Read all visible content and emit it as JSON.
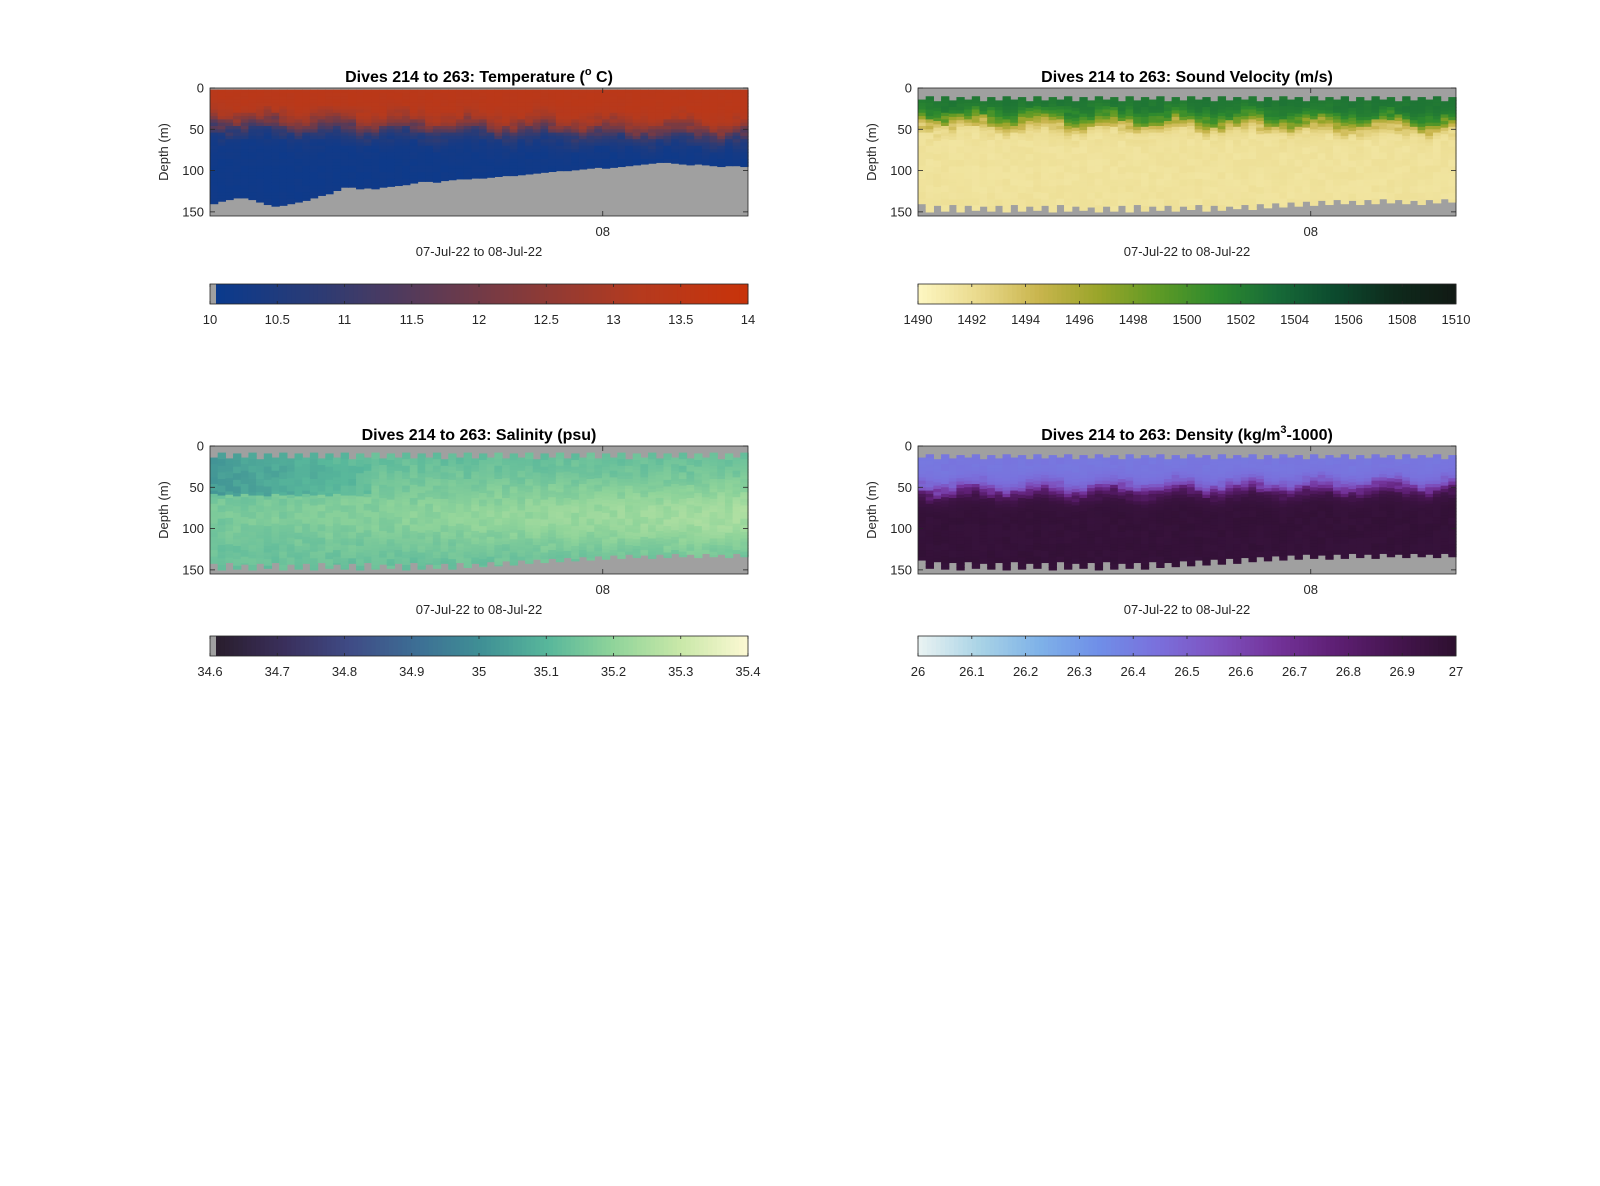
{
  "colors": {
    "missing": "#a0a0a0",
    "axis": "#262626"
  },
  "chart_data": [
    {
      "type": "heatmap",
      "title_pre": "Dives 214 to 263: Temperature (",
      "title_sup": "o",
      "title_post": " C)",
      "xlabel": "07-Jul-22 to 08-Jul-22",
      "ylabel": "Depth (m)",
      "x_tick_labels": [
        "08"
      ],
      "x_tick_positions": [
        0.73
      ],
      "y_ticks": [
        0,
        50,
        100,
        150
      ],
      "ylim": [
        0,
        155
      ],
      "clim": [
        10,
        14
      ],
      "colorbar_ticks": [
        "10",
        "10.5",
        "11",
        "11.5",
        "12",
        "12.5",
        "13",
        "13.5",
        "14"
      ],
      "colormap": [
        "#0b3a8c",
        "#2e3b73",
        "#5c3a55",
        "#8a3a38",
        "#b53a1e",
        "#c8330a"
      ],
      "colorbar_gap_left": true,
      "max_depth": [
        140,
        137,
        135,
        133,
        133,
        135,
        138,
        141,
        143,
        142,
        140,
        138,
        136,
        133,
        130,
        128,
        124,
        120,
        120,
        122,
        121,
        122,
        120,
        119,
        118,
        117,
        115,
        113,
        113,
        114,
        112,
        111,
        110,
        110,
        109,
        109,
        108,
        107,
        106,
        106,
        105,
        104,
        103,
        102,
        101,
        100,
        100,
        99,
        98,
        97,
        96,
        97,
        96,
        95,
        94,
        93,
        92,
        91,
        90,
        90,
        91,
        92,
        93,
        92,
        93,
        94,
        95,
        94,
        94,
        95
      ],
      "min_depth": [
        2,
        2,
        2,
        2,
        2,
        2,
        2,
        2,
        2,
        2,
        2,
        2,
        2,
        2,
        2,
        2,
        2,
        2,
        2,
        2,
        2,
        2,
        2,
        2,
        2,
        2,
        2,
        2,
        2,
        2,
        2,
        2,
        2,
        2,
        2,
        2,
        2,
        2,
        2,
        2,
        2,
        2,
        2,
        2,
        2,
        2,
        2,
        2,
        2,
        2,
        2,
        2,
        2,
        2,
        2,
        2,
        2,
        2,
        2,
        2,
        2,
        2,
        2,
        2,
        2,
        2,
        2,
        2,
        2,
        2
      ],
      "profile": {
        "kind": "tanh",
        "d0_start": 42,
        "d0_end": 55,
        "width": 14,
        "top": 13.4,
        "bottom": 10.1
      }
    },
    {
      "type": "heatmap",
      "title_pre": "Dives 214 to 263: Sound Velocity (m/s)",
      "title_sup": "",
      "title_post": "",
      "xlabel": "07-Jul-22 to 08-Jul-22",
      "ylabel": "Depth (m)",
      "x_tick_labels": [
        "08"
      ],
      "x_tick_positions": [
        0.73
      ],
      "y_ticks": [
        0,
        50,
        100,
        150
      ],
      "ylim": [
        0,
        155
      ],
      "clim": [
        1490,
        1510
      ],
      "colorbar_ticks": [
        "1490",
        "1492",
        "1494",
        "1496",
        "1498",
        "1500",
        "1502",
        "1504",
        "1506",
        "1508",
        "1510"
      ],
      "colormap": [
        "#fdf6c0",
        "#e9d98b",
        "#c9b54d",
        "#9aa52a",
        "#5f9a25",
        "#2e8a2e",
        "#176b38",
        "#0c4a2e",
        "#0e2a1c",
        "#111a14"
      ],
      "colorbar_gap_left": false,
      "max_depth": [
        140,
        150,
        142,
        149,
        141,
        150,
        142,
        148,
        143,
        149,
        142,
        150,
        141,
        149,
        143,
        148,
        142,
        150,
        141,
        149,
        143,
        148,
        144,
        150,
        143,
        149,
        142,
        150,
        141,
        149,
        143,
        148,
        142,
        149,
        143,
        147,
        141,
        149,
        142,
        148,
        143,
        146,
        141,
        147,
        140,
        145,
        139,
        144,
        138,
        143,
        137,
        142,
        136,
        141,
        135,
        140,
        136,
        141,
        135,
        140,
        134,
        139,
        135,
        140,
        136,
        141,
        135,
        139,
        134,
        138
      ],
      "min_depth": [
        14,
        10,
        16,
        10,
        15,
        11,
        14,
        10,
        16,
        11,
        15,
        10,
        14,
        11,
        16,
        10,
        15,
        11,
        14,
        10,
        16,
        11,
        15,
        10,
        14,
        11,
        16,
        10,
        15,
        11,
        14,
        10,
        16,
        11,
        15,
        10,
        14,
        11,
        16,
        10,
        15,
        11,
        14,
        10,
        16,
        11,
        15,
        10,
        14,
        11,
        16,
        10,
        15,
        11,
        14,
        10,
        16,
        11,
        15,
        10,
        14,
        11,
        16,
        10,
        15,
        11,
        14,
        10,
        16,
        11
      ],
      "profile": {
        "kind": "tanh",
        "d0_start": 38,
        "d0_end": 44,
        "width": 10,
        "top": 1502.5,
        "bottom": 1491.5
      }
    },
    {
      "type": "heatmap",
      "title_pre": "Dives 214 to 263: Salinity (psu)",
      "title_sup": "",
      "title_post": "",
      "xlabel": "07-Jul-22 to 08-Jul-22",
      "ylabel": "Depth (m)",
      "x_tick_labels": [
        "08"
      ],
      "x_tick_positions": [
        0.73
      ],
      "y_ticks": [
        0,
        50,
        100,
        150
      ],
      "ylim": [
        0,
        155
      ],
      "clim": [
        34.6,
        35.4
      ],
      "colorbar_ticks": [
        "34.6",
        "34.7",
        "34.8",
        "34.9",
        "35",
        "35.1",
        "35.2",
        "35.3",
        "35.4"
      ],
      "colormap": [
        "#2a1e2e",
        "#3a2f5c",
        "#3f4b86",
        "#3d6e95",
        "#3f9095",
        "#58b79b",
        "#90d49a",
        "#c8e8a8",
        "#fbf8d2"
      ],
      "colorbar_gap_left": true,
      "max_depth": [
        142,
        150,
        141,
        149,
        143,
        150,
        142,
        148,
        141,
        150,
        143,
        149,
        142,
        150,
        141,
        148,
        143,
        149,
        142,
        150,
        141,
        149,
        143,
        148,
        142,
        150,
        141,
        149,
        143,
        148,
        142,
        149,
        141,
        147,
        142,
        146,
        140,
        145,
        139,
        144,
        138,
        142,
        137,
        141,
        136,
        140,
        135,
        139,
        134,
        138,
        133,
        137,
        132,
        136,
        131,
        135,
        132,
        136,
        131,
        135,
        130,
        134,
        131,
        135,
        130,
        134,
        131,
        135,
        130,
        134
      ],
      "min_depth": [
        14,
        8,
        15,
        9,
        14,
        8,
        16,
        9,
        14,
        8,
        15,
        9,
        14,
        8,
        15,
        9,
        14,
        8,
        16,
        9,
        14,
        8,
        15,
        9,
        14,
        8,
        15,
        9,
        14,
        8,
        16,
        9,
        14,
        8,
        15,
        9,
        14,
        8,
        15,
        9,
        14,
        8,
        16,
        9,
        14,
        8,
        15,
        9,
        14,
        8,
        15,
        9,
        14,
        8,
        16,
        9,
        14,
        8,
        15,
        9,
        14,
        8,
        15,
        9,
        14,
        8,
        16,
        9,
        14,
        8
      ],
      "profile": {
        "kind": "bump",
        "center": 85,
        "width": 45,
        "top": 35.12,
        "peak": 35.24,
        "early_low": 35.03
      }
    },
    {
      "type": "heatmap",
      "title_pre": "Dives 214 to 263: Density (kg/m",
      "title_sup": "3",
      "title_post": "-1000)",
      "xlabel": "07-Jul-22 to 08-Jul-22",
      "ylabel": "Depth (m)",
      "x_tick_labels": [
        "08"
      ],
      "x_tick_positions": [
        0.73
      ],
      "y_ticks": [
        0,
        50,
        100,
        150
      ],
      "ylim": [
        0,
        155
      ],
      "clim": [
        26,
        27
      ],
      "colorbar_ticks": [
        "26",
        "26.1",
        "26.2",
        "26.3",
        "26.4",
        "26.5",
        "26.6",
        "26.7",
        "26.8",
        "26.9",
        "27"
      ],
      "colormap": [
        "#e8f2f2",
        "#a9d3e6",
        "#7fb2e8",
        "#6f8fe8",
        "#7a70dc",
        "#7e52c0",
        "#73339a",
        "#5e1f74",
        "#461550",
        "#2e1030"
      ],
      "colorbar_gap_left": false,
      "max_depth": [
        138,
        148,
        140,
        149,
        141,
        150,
        140,
        148,
        142,
        149,
        141,
        150,
        140,
        149,
        142,
        148,
        141,
        150,
        140,
        149,
        142,
        148,
        141,
        150,
        140,
        149,
        142,
        148,
        141,
        149,
        140,
        147,
        141,
        146,
        139,
        145,
        138,
        144,
        137,
        143,
        136,
        142,
        135,
        140,
        134,
        139,
        133,
        138,
        132,
        137,
        131,
        136,
        132,
        137,
        131,
        136,
        130,
        135,
        131,
        136,
        130,
        134,
        131,
        135,
        130,
        134,
        131,
        135,
        130,
        134
      ],
      "min_depth": [
        14,
        10,
        16,
        10,
        15,
        11,
        14,
        10,
        16,
        11,
        15,
        10,
        14,
        11,
        16,
        10,
        15,
        11,
        14,
        10,
        16,
        11,
        15,
        10,
        14,
        11,
        16,
        10,
        15,
        11,
        14,
        10,
        16,
        11,
        15,
        10,
        14,
        11,
        16,
        10,
        15,
        11,
        14,
        10,
        16,
        11,
        15,
        10,
        14,
        11,
        16,
        10,
        15,
        11,
        14,
        10,
        16,
        11,
        15,
        10,
        14,
        11,
        16,
        10,
        15,
        11,
        14,
        10,
        16,
        11
      ],
      "profile": {
        "kind": "tanh",
        "d0_start": 55,
        "d0_end": 50,
        "width": 10,
        "top": 26.42,
        "bottom": 26.97
      }
    }
  ]
}
